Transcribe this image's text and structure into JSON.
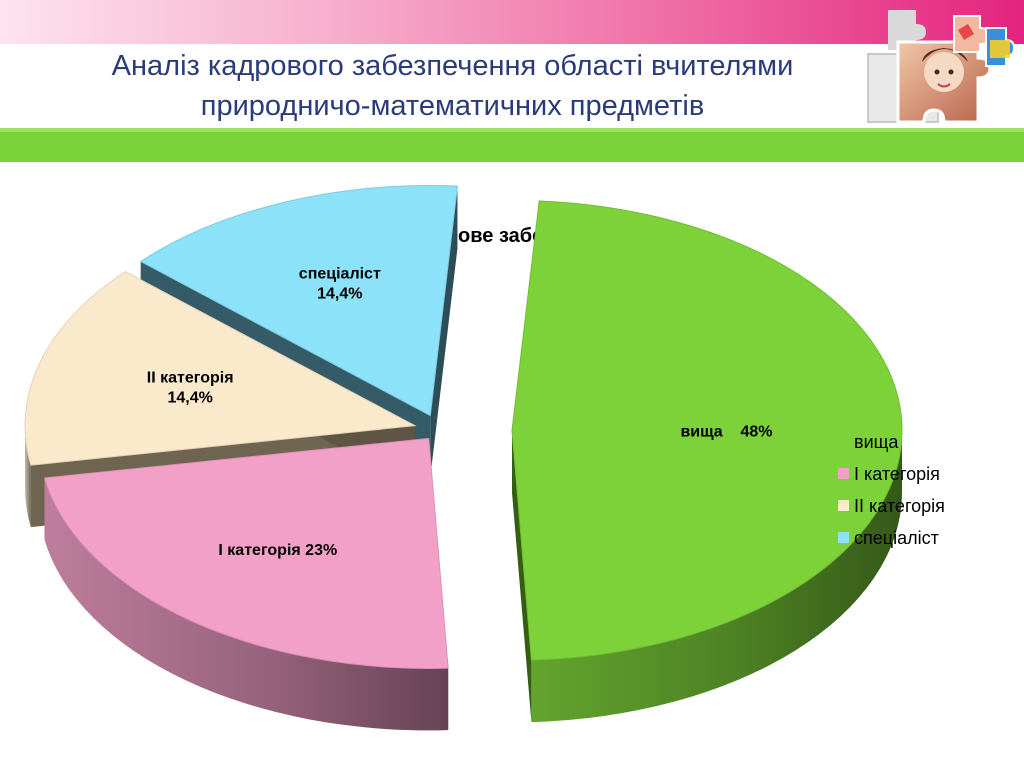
{
  "slide": {
    "title_line1": "Аналіз кадрового забезпечення області вчителями",
    "title_line2": "природничо-математичних предметів"
  },
  "colors": {
    "top_band": "#e4237f",
    "title": "#2b3a7a",
    "green_band": "#7bd13a"
  },
  "decoration": {
    "icon": "puzzle-pieces-icon"
  },
  "chart_data": {
    "type": "pie",
    "style": "3d-exploded",
    "title": "Кадрове забезпечення",
    "legend_position": "right",
    "categories": [
      "вища",
      "I категорія",
      "II категорія",
      "спеціаліст"
    ],
    "values": [
      48,
      23,
      14.4,
      14.4
    ],
    "unit": "%",
    "data_labels": [
      [
        "вища    48%"
      ],
      [
        "I категорія 23%"
      ],
      [
        "II категорія",
        "14,4%"
      ],
      [
        "спеціаліст",
        "14,4%"
      ]
    ],
    "colors": [
      "#7dd23a",
      "#f3a0c8",
      "#fbe9cc",
      "#8ce2f8"
    ],
    "side_colors": [
      "#3f6e16",
      "#9e5678",
      "#6e6450",
      "#355a68"
    ],
    "legend": [
      "вища",
      "I категорія",
      "II категорія",
      "спеціаліст"
    ]
  }
}
